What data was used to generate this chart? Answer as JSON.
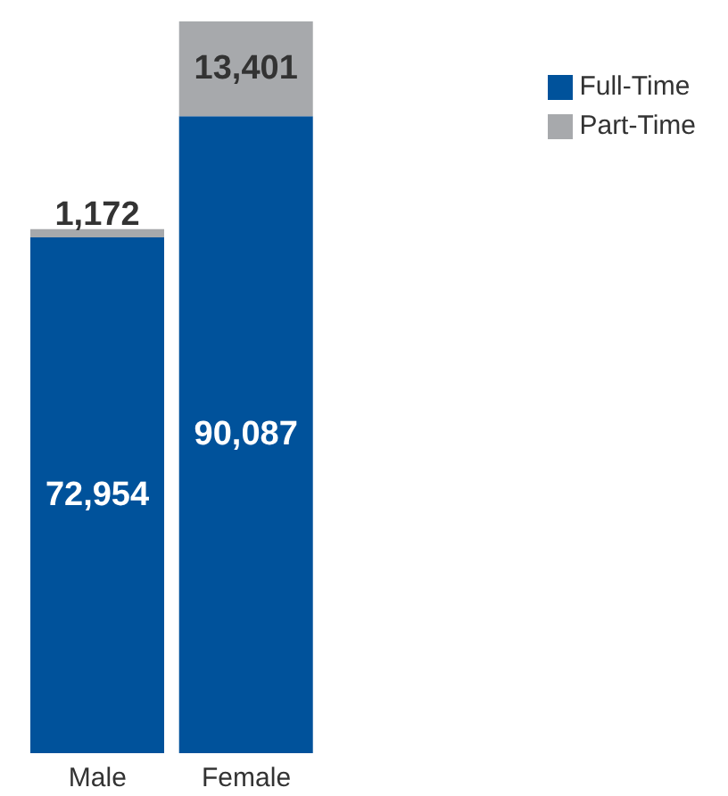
{
  "chart_data": {
    "type": "bar",
    "stacked": true,
    "categories": [
      "Male",
      "Female"
    ],
    "series": [
      {
        "name": "Full-Time",
        "color": "#00529b",
        "values": [
          72954,
          90087
        ],
        "value_labels": [
          "72,954",
          "90,087"
        ]
      },
      {
        "name": "Part-Time",
        "color": "#a7a9ac",
        "values": [
          1172,
          13401
        ],
        "value_labels": [
          "1,172",
          "13,401"
        ]
      }
    ],
    "legend": "top right",
    "grid": false
  }
}
